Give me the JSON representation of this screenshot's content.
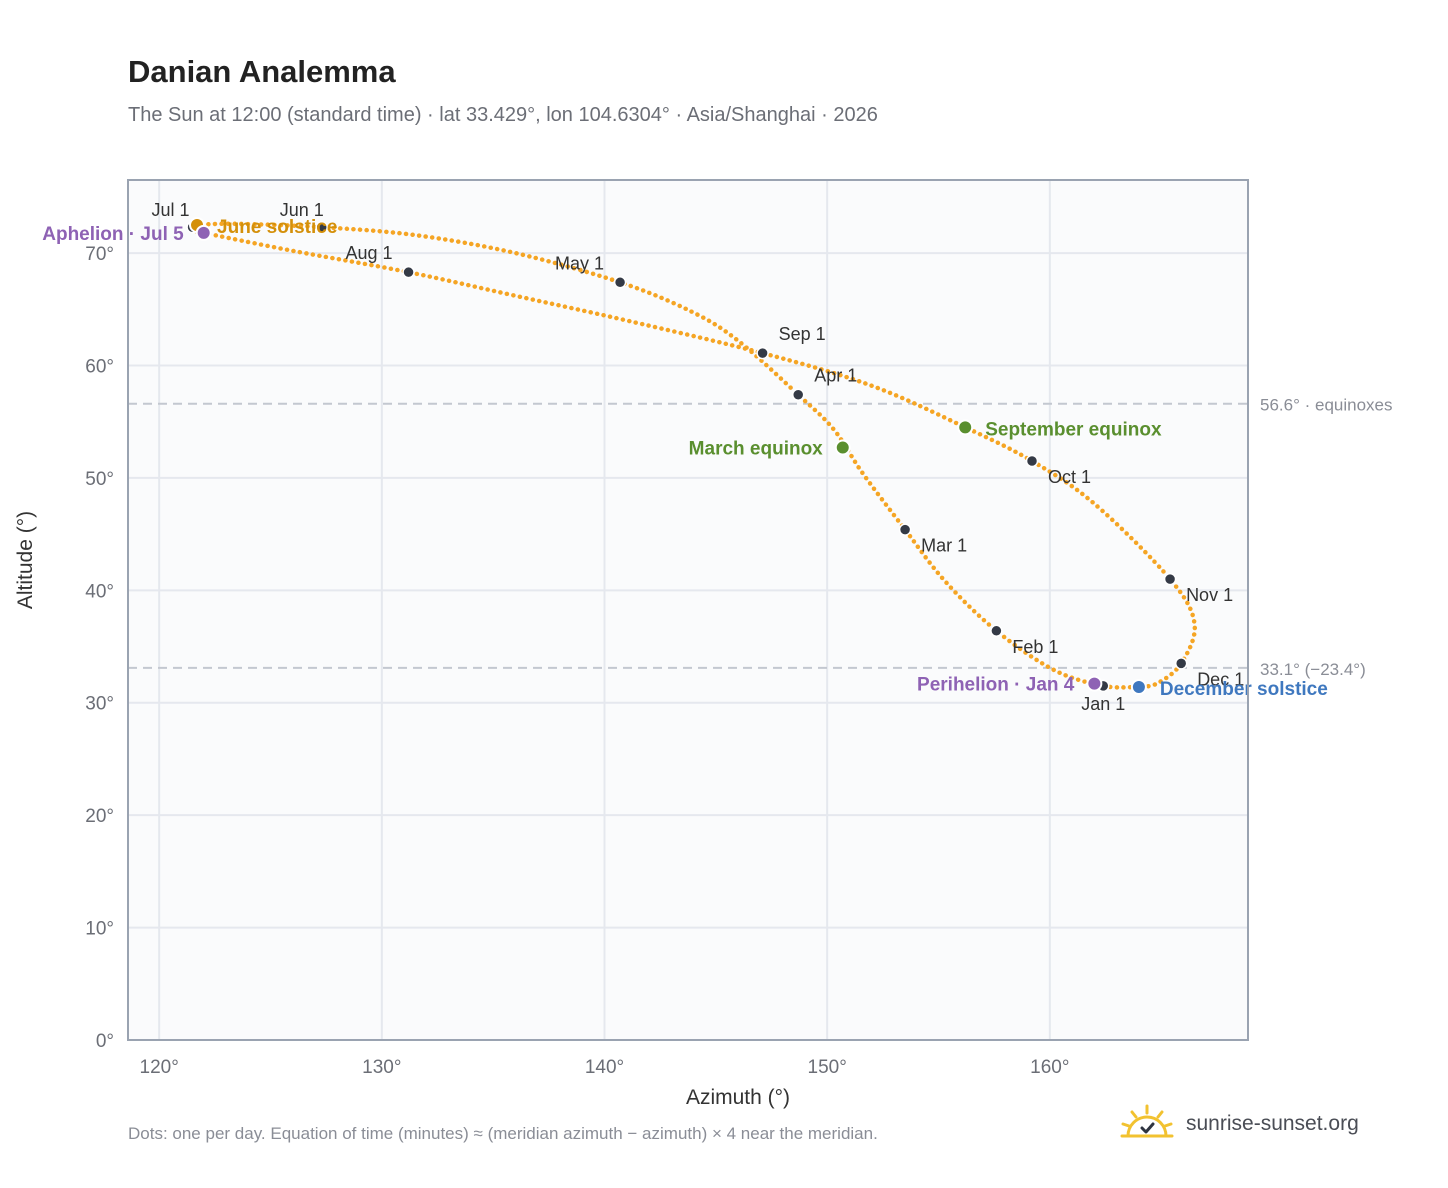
{
  "title": "Danian Analemma",
  "subtitle": "The Sun at 12:00 (standard time) · lat 33.429°, lon 104.6304° · Asia/Shanghai · 2026",
  "footnote": "Dots: one per day. Equation of time (minutes) ≈ (meridian azimuth − azimuth) × 4 near the meridian.",
  "brand": {
    "name": "sunrise-sunset.org",
    "icon": "sun-check-icon"
  },
  "colors": {
    "curve": "#f5a524",
    "month_dot": "#343a46",
    "equinox": "#5a8f2f",
    "solstice_june": "#d4900a",
    "solstice_december": "#3f78bf",
    "apsis": "#8e62b4",
    "reference_line": "#c3c8d0",
    "plot_bg": "#fafbfc",
    "grid": "#e5e8ee",
    "axis_frame": "#9aa3b1"
  },
  "chart_data": {
    "type": "scatter",
    "xlabel": "Azimuth (°)",
    "ylabel": "Altitude (°)",
    "xlim": [
      118.6,
      168.9
    ],
    "ylim": [
      0,
      76.5
    ],
    "x_ticks": [
      120,
      130,
      140,
      150,
      160
    ],
    "x_tick_labels": [
      "120°",
      "130°",
      "140°",
      "150°",
      "160°"
    ],
    "y_ticks": [
      0,
      10,
      20,
      30,
      40,
      50,
      60,
      70
    ],
    "y_tick_labels": [
      "0°",
      "10°",
      "20°",
      "30°",
      "40°",
      "50°",
      "60°",
      "70°"
    ],
    "grid": true,
    "month_markers": [
      {
        "label": "Jan 1",
        "azimuth": 162.4,
        "altitude": 31.5
      },
      {
        "label": "Feb 1",
        "azimuth": 157.6,
        "altitude": 36.4
      },
      {
        "label": "Mar 1",
        "azimuth": 153.5,
        "altitude": 45.4
      },
      {
        "label": "Apr 1",
        "azimuth": 148.7,
        "altitude": 57.4
      },
      {
        "label": "May 1",
        "azimuth": 140.7,
        "altitude": 67.4
      },
      {
        "label": "Jun 1",
        "azimuth": 127.3,
        "altitude": 72.3
      },
      {
        "label": "Jul 1",
        "azimuth": 121.5,
        "altitude": 72.3
      },
      {
        "label": "Aug 1",
        "azimuth": 131.2,
        "altitude": 68.3
      },
      {
        "label": "Sep 1",
        "azimuth": 147.1,
        "altitude": 61.1
      },
      {
        "label": "Oct 1",
        "azimuth": 159.2,
        "altitude": 51.5
      },
      {
        "label": "Nov 1",
        "azimuth": 165.4,
        "altitude": 41.0
      },
      {
        "label": "Dec 1",
        "azimuth": 165.9,
        "altitude": 33.5
      }
    ],
    "events": [
      {
        "label": "March equinox",
        "azimuth": 150.7,
        "altitude": 52.7,
        "kind": "equinox"
      },
      {
        "label": "September equinox",
        "azimuth": 156.2,
        "altitude": 54.5,
        "kind": "equinox"
      },
      {
        "label": "June solstice",
        "azimuth": 121.7,
        "altitude": 72.5,
        "kind": "solstice_june"
      },
      {
        "label": "December solstice",
        "azimuth": 164.0,
        "altitude": 31.4,
        "kind": "solstice_december"
      },
      {
        "label": "Perihelion · Jan 4",
        "azimuth": 162.0,
        "altitude": 31.7,
        "kind": "apsis"
      },
      {
        "label": "Aphelion · Jul 5",
        "azimuth": 122.0,
        "altitude": 71.8,
        "kind": "apsis"
      }
    ],
    "reference_lines": [
      {
        "altitude": 56.6,
        "label": "56.6° · equinoxes"
      },
      {
        "altitude": 33.1,
        "label": "33.1° (−23.4°)"
      }
    ],
    "curve_path": [
      {
        "azimuth": 163.9,
        "altitude": 31.4
      },
      {
        "azimuth": 162.4,
        "altitude": 31.5
      },
      {
        "azimuth": 160.2,
        "altitude": 32.9
      },
      {
        "azimuth": 157.6,
        "altitude": 36.4
      },
      {
        "azimuth": 155.3,
        "altitude": 40.8
      },
      {
        "azimuth": 153.5,
        "altitude": 45.4
      },
      {
        "azimuth": 151.6,
        "altitude": 50.4
      },
      {
        "azimuth": 150.3,
        "altitude": 54.3
      },
      {
        "azimuth": 148.7,
        "altitude": 57.4
      },
      {
        "azimuth": 146.0,
        "altitude": 62.2
      },
      {
        "azimuth": 143.9,
        "altitude": 64.8
      },
      {
        "azimuth": 140.7,
        "altitude": 67.4
      },
      {
        "azimuth": 136.0,
        "altitude": 70.0
      },
      {
        "azimuth": 131.5,
        "altitude": 71.6
      },
      {
        "azimuth": 127.3,
        "altitude": 72.3
      },
      {
        "azimuth": 123.5,
        "altitude": 72.6
      },
      {
        "azimuth": 121.7,
        "altitude": 72.5
      },
      {
        "azimuth": 121.5,
        "altitude": 72.3
      },
      {
        "azimuth": 121.6,
        "altitude": 72.0
      },
      {
        "azimuth": 122.0,
        "altitude": 71.8
      },
      {
        "azimuth": 126.0,
        "altitude": 70.2
      },
      {
        "azimuth": 131.2,
        "altitude": 68.3
      },
      {
        "azimuth": 136.0,
        "altitude": 66.2
      },
      {
        "azimuth": 141.0,
        "altitude": 64.0
      },
      {
        "azimuth": 147.1,
        "altitude": 61.1
      },
      {
        "azimuth": 152.0,
        "altitude": 58.2
      },
      {
        "azimuth": 156.2,
        "altitude": 54.5
      },
      {
        "azimuth": 159.2,
        "altitude": 51.5
      },
      {
        "azimuth": 162.0,
        "altitude": 47.7
      },
      {
        "azimuth": 165.4,
        "altitude": 41.0
      },
      {
        "azimuth": 166.5,
        "altitude": 37.0
      },
      {
        "azimuth": 165.9,
        "altitude": 33.5
      },
      {
        "azimuth": 164.8,
        "altitude": 31.7
      },
      {
        "azimuth": 163.9,
        "altitude": 31.4
      }
    ]
  }
}
